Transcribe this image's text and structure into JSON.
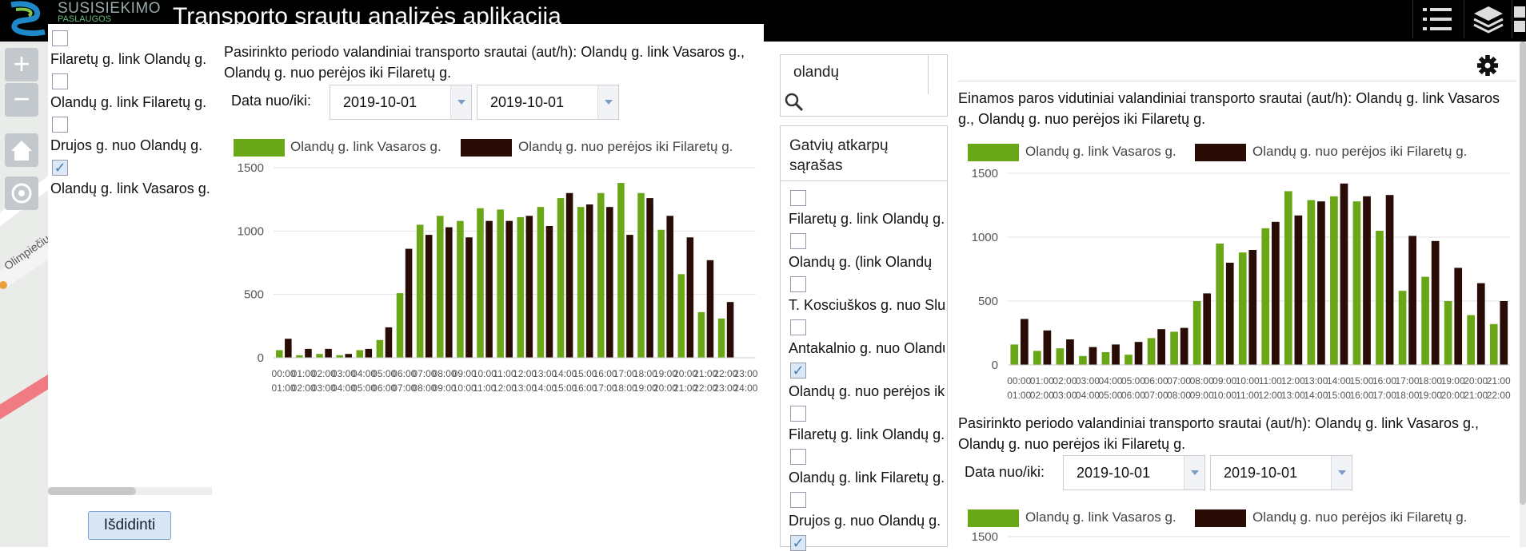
{
  "header": {
    "logo_text": "SUSISIEKIMO",
    "logo_sub": "PASLAUGOS",
    "title": "Transporto srautų analizės aplikacija",
    "icons": [
      "list-icon",
      "layers-icon",
      "grid-icon"
    ]
  },
  "map": {
    "zoom_in": "+",
    "zoom_out": "−",
    "road_label": "Olimpiečių"
  },
  "left_list": {
    "items": [
      {
        "label": "Filaretų g. link Olandų g.",
        "checked": false
      },
      {
        "label": "Olandų g. link Filaretų g.",
        "checked": false
      },
      {
        "label": "Drujos g. nuo Olandų g.",
        "checked": false
      },
      {
        "label": "Olandų g. link Vasaros g.",
        "checked": true
      }
    ],
    "zoom_button": "Išdidinti"
  },
  "left_panel": {
    "title": "Pasirinkto periodo valandiniai transporto srautai (aut/h): Olandų g. link Vasaros g., Olandų g. nuo perėjos iki Filaretų g.",
    "date_label": "Data nuo/iki:",
    "date_from": "2019-10-01",
    "date_to": "2019-10-01"
  },
  "search": {
    "value": "olandų",
    "placeholder": ""
  },
  "mid_list": {
    "heading": "Gatvių atkarpų sąrašas",
    "items": [
      {
        "label": "Filaretų g. link Olandų g.",
        "checked": false
      },
      {
        "label": "Olandų g. (link Olandų",
        "checked": false
      },
      {
        "label": "T. Kosciuškos g. nuo Slu",
        "checked": false
      },
      {
        "label": "Antakalnio g. nuo Olandų",
        "checked": false
      },
      {
        "label": "Olandų g. nuo perėjos iki",
        "checked": true
      },
      {
        "label": "Filaretų g. link Olandų g.",
        "checked": false
      },
      {
        "label": "Olandų g. link Filaretų g.",
        "checked": false
      },
      {
        "label": "Drujos g. nuo Olandų g.",
        "checked": false
      },
      {
        "label": "",
        "checked": true
      }
    ]
  },
  "right_panel": {
    "title_top": "Einamos paros vidutiniai valandiniai transporto srautai (aut/h): Olandų g. link Vasaros g., Olandų g. nuo perėjos iki Filaretų g.",
    "title_bottom": "Pasirinkto periodo valandiniai transporto srautai (aut/h): Olandų g. link Vasaros g., Olandų g. nuo perėjos iki Filaretų g.",
    "date_label": "Data nuo/iki:",
    "date_from": "2019-10-01",
    "date_to": "2019-10-01",
    "settings_icon": "gear-icon"
  },
  "colors": {
    "series_a": "#6aa716",
    "series_b": "#2a0c06"
  },
  "chart_data": [
    {
      "type": "bar",
      "title": "",
      "categories": [
        "00:00-01:00",
        "01:00-02:00",
        "02:00-03:00",
        "03:00-04:00",
        "04:00-05:00",
        "05:00-06:00",
        "06:00-07:00",
        "07:00-08:00",
        "08:00-09:00",
        "09:00-10:00",
        "10:00-11:00",
        "11:00-12:00",
        "12:00-13:00",
        "13:00-14:00",
        "14:00-15:00",
        "15:00-16:00",
        "16:00-17:00",
        "17:00-18:00",
        "18:00-19:00",
        "19:00-20:00",
        "20:00-21:00",
        "21:00-22:00",
        "22:00-23:00",
        "23:00-24:00"
      ],
      "tick_top": [
        "00:00",
        "01:00",
        "02:00",
        "03:00",
        "04:00",
        "05:00",
        "06:00",
        "07:00",
        "08:00",
        "09:00",
        "10:00",
        "11:00",
        "12:00",
        "13:00",
        "14:00",
        "15:00",
        "16:00",
        "17:00",
        "18:00",
        "19:00",
        "20:00",
        "21:00",
        "22:00",
        "23:00"
      ],
      "tick_bottom": [
        "01:00",
        "02:00",
        "03:00",
        "04:00",
        "05:00",
        "06:00",
        "07:00",
        "08:00",
        "09:00",
        "10:00",
        "11:00",
        "12:00",
        "13:00",
        "14:00",
        "15:00",
        "16:00",
        "17:00",
        "18:00",
        "19:00",
        "20:00",
        "21:00",
        "22:00",
        "23:00",
        "24:00"
      ],
      "series": [
        {
          "name": "Olandų g. link Vasaros g.",
          "values": [
            60,
            20,
            30,
            20,
            60,
            140,
            510,
            1050,
            1120,
            1080,
            1180,
            1170,
            1110,
            1190,
            1260,
            1190,
            1300,
            1380,
            1300,
            1010,
            660,
            360,
            310,
            0
          ]
        },
        {
          "name": "Olandų g. nuo perėjos iki Filaretų g.",
          "values": [
            150,
            70,
            70,
            30,
            70,
            240,
            860,
            970,
            1030,
            950,
            1080,
            1080,
            1120,
            1040,
            1300,
            1210,
            1190,
            970,
            1260,
            1120,
            950,
            770,
            440,
            0
          ]
        }
      ],
      "yticks": [
        0,
        500,
        1000,
        1500
      ],
      "ylim": [
        0,
        1500
      ],
      "legend": "top"
    },
    {
      "type": "bar",
      "title": "",
      "categories": [
        "00:00-01:00",
        "01:00-02:00",
        "02:00-03:00",
        "03:00-04:00",
        "04:00-05:00",
        "05:00-06:00",
        "06:00-07:00",
        "07:00-08:00",
        "08:00-09:00",
        "09:00-10:00",
        "10:00-11:00",
        "11:00-12:00",
        "12:00-13:00",
        "13:00-14:00",
        "14:00-15:00",
        "15:00-16:00",
        "16:00-17:00",
        "17:00-18:00",
        "18:00-19:00",
        "19:00-20:00",
        "20:00-21:00",
        "21:00-22:00"
      ],
      "tick_top": [
        "00:00",
        "01:00",
        "02:00",
        "03:00",
        "04:00",
        "05:00",
        "06:00",
        "07:00",
        "08:00",
        "09:00",
        "10:00",
        "11:00",
        "12:00",
        "13:00",
        "14:00",
        "15:00",
        "16:00",
        "17:00",
        "18:00",
        "19:00",
        "20:00",
        "21:00"
      ],
      "tick_bottom": [
        "01:00",
        "02:00",
        "03:00",
        "04:00",
        "05:00",
        "06:00",
        "07:00",
        "08:00",
        "09:00",
        "10:00",
        "11:00",
        "12:00",
        "13:00",
        "14:00",
        "15:00",
        "16:00",
        "17:00",
        "18:00",
        "19:00",
        "20:00",
        "21:00",
        "22:00"
      ],
      "series": [
        {
          "name": "Olandų g. link Vasaros g.",
          "values": [
            160,
            110,
            130,
            70,
            100,
            80,
            210,
            260,
            500,
            950,
            880,
            1070,
            1360,
            1290,
            1320,
            1280,
            1050,
            580,
            690,
            500,
            390,
            320
          ]
        },
        {
          "name": "Olandų g. nuo perėjos iki Filaretų g.",
          "values": [
            360,
            270,
            200,
            140,
            160,
            180,
            280,
            290,
            560,
            800,
            900,
            1120,
            1170,
            1280,
            1420,
            1320,
            1330,
            1010,
            970,
            760,
            640,
            500
          ]
        }
      ],
      "yticks": [
        0,
        500,
        1000,
        1500
      ],
      "ylim": [
        0,
        1500
      ],
      "legend": "top"
    },
    {
      "type": "bar",
      "title": "",
      "series": [
        {
          "name": "Olandų g. link Vasaros g.",
          "values": []
        },
        {
          "name": "Olandų g. nuo perėjos iki Filaretų g.",
          "values": []
        }
      ],
      "yticks": [
        1500
      ],
      "legend": "top"
    }
  ]
}
